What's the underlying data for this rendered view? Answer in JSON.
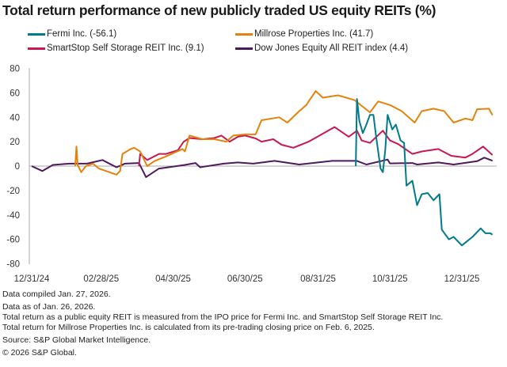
{
  "chart_data": {
    "type": "line",
    "title": "Total return performance of new publicly traded US equity REITs (%)",
    "xlabel": "",
    "ylabel": "",
    "ylim": [
      -80,
      80
    ],
    "yticks": [
      "80",
      "60",
      "40",
      "20",
      "0",
      "-20",
      "-40",
      "-60",
      "-80"
    ],
    "xticks": [
      "12/31/24",
      "02/28/25",
      "04/30/25",
      "06/30/25",
      "08/31/25",
      "10/31/25",
      "12/31/25"
    ],
    "xtick_dates": [
      "2024-12-31",
      "2025-02-28",
      "2025-04-30",
      "2025-06-30",
      "2025-08-31",
      "2025-10-31",
      "2025-12-31"
    ],
    "xlim": [
      "2024-12-31",
      "2026-01-26"
    ],
    "grid": false,
    "legend_placement": "top",
    "series": [
      {
        "name": "Fermi Inc. (-56.1)",
        "color": "#007a8c",
        "points": [
          [
            "2025-10-02",
            0
          ],
          [
            "2025-10-03",
            55
          ],
          [
            "2025-10-05",
            37
          ],
          [
            "2025-10-08",
            27
          ],
          [
            "2025-10-11",
            34
          ],
          [
            "2025-10-14",
            42
          ],
          [
            "2025-10-17",
            42
          ],
          [
            "2025-10-19",
            26
          ],
          [
            "2025-10-23",
            -2
          ],
          [
            "2025-10-25",
            -5
          ],
          [
            "2025-10-27",
            13
          ],
          [
            "2025-10-29",
            42
          ],
          [
            "2025-11-02",
            30
          ],
          [
            "2025-11-05",
            34
          ],
          [
            "2025-11-09",
            21
          ],
          [
            "2025-11-12",
            19
          ],
          [
            "2025-11-14",
            -16
          ],
          [
            "2025-11-19",
            -12
          ],
          [
            "2025-11-23",
            -32
          ],
          [
            "2025-11-27",
            -23
          ],
          [
            "2025-12-02",
            -22
          ],
          [
            "2025-12-07",
            -28
          ],
          [
            "2025-12-12",
            -23
          ],
          [
            "2025-12-14",
            -52
          ],
          [
            "2025-12-20",
            -60
          ],
          [
            "2025-12-24",
            -58
          ],
          [
            "2025-12-31",
            -65
          ],
          [
            "2026-01-09",
            -58
          ],
          [
            "2026-01-16",
            -51
          ],
          [
            "2026-01-20",
            -55
          ],
          [
            "2026-01-24",
            -55
          ],
          [
            "2026-01-26",
            -56.1
          ]
        ]
      },
      {
        "name": "Millrose Properties Inc. (41.7)",
        "color": "#e5820b",
        "points": [
          [
            "2025-02-06",
            0
          ],
          [
            "2025-02-07",
            16
          ],
          [
            "2025-02-08",
            1
          ],
          [
            "2025-02-11",
            -5
          ],
          [
            "2025-02-15",
            0
          ],
          [
            "2025-02-21",
            2
          ],
          [
            "2025-02-26",
            -2
          ],
          [
            "2025-03-10",
            -6
          ],
          [
            "2025-03-13",
            -7
          ],
          [
            "2025-03-16",
            -4
          ],
          [
            "2025-03-18",
            10
          ],
          [
            "2025-03-25",
            14
          ],
          [
            "2025-03-28",
            15
          ],
          [
            "2025-04-02",
            12
          ],
          [
            "2025-04-08",
            0
          ],
          [
            "2025-04-14",
            4
          ],
          [
            "2025-04-24",
            8
          ],
          [
            "2025-05-08",
            14
          ],
          [
            "2025-05-10",
            12
          ],
          [
            "2025-05-14",
            25
          ],
          [
            "2025-05-25",
            22
          ],
          [
            "2025-06-04",
            22
          ],
          [
            "2025-06-14",
            20
          ],
          [
            "2025-06-20",
            25
          ],
          [
            "2025-06-30",
            26
          ],
          [
            "2025-07-09",
            26
          ],
          [
            "2025-07-14",
            37.6
          ],
          [
            "2025-07-29",
            40
          ],
          [
            "2025-08-05",
            35.6
          ],
          [
            "2025-08-15",
            45
          ],
          [
            "2025-08-21",
            50
          ],
          [
            "2025-08-29",
            61.5
          ],
          [
            "2025-09-04",
            56
          ],
          [
            "2025-09-17",
            58
          ],
          [
            "2025-10-01",
            54
          ],
          [
            "2025-10-14",
            44
          ],
          [
            "2025-10-21",
            53
          ],
          [
            "2025-10-31",
            50
          ],
          [
            "2025-11-10",
            45
          ],
          [
            "2025-11-21",
            35.6
          ],
          [
            "2025-11-27",
            45
          ],
          [
            "2025-12-07",
            47
          ],
          [
            "2025-12-16",
            45
          ],
          [
            "2025-12-24",
            35.6
          ],
          [
            "2026-01-03",
            39
          ],
          [
            "2026-01-09",
            37.6
          ],
          [
            "2026-01-13",
            46.6
          ],
          [
            "2026-01-23",
            47
          ],
          [
            "2026-01-26",
            41.7
          ]
        ]
      },
      {
        "name": "SmartStop Self Storage REIT Inc. (9.1)",
        "color": "#c8194f",
        "points": [
          [
            "2025-04-01",
            0
          ],
          [
            "2025-04-02",
            10
          ],
          [
            "2025-04-08",
            5
          ],
          [
            "2025-04-18",
            10
          ],
          [
            "2025-04-24",
            10
          ],
          [
            "2025-05-04",
            13
          ],
          [
            "2025-05-09",
            20
          ],
          [
            "2025-05-14",
            23
          ],
          [
            "2025-05-25",
            22
          ],
          [
            "2025-06-04",
            23
          ],
          [
            "2025-06-10",
            25
          ],
          [
            "2025-06-17",
            20
          ],
          [
            "2025-06-24",
            24
          ],
          [
            "2025-06-30",
            25
          ],
          [
            "2025-07-09",
            22.7
          ],
          [
            "2025-07-14",
            20
          ],
          [
            "2025-07-24",
            22
          ],
          [
            "2025-07-31",
            17.5
          ],
          [
            "2025-08-10",
            15
          ],
          [
            "2025-08-23",
            20
          ],
          [
            "2025-09-14",
            32
          ],
          [
            "2025-09-26",
            24
          ],
          [
            "2025-10-03",
            29
          ],
          [
            "2025-10-07",
            21
          ],
          [
            "2025-10-14",
            19
          ],
          [
            "2025-10-25",
            29
          ],
          [
            "2025-10-31",
            21
          ],
          [
            "2025-11-07",
            18
          ],
          [
            "2025-11-19",
            10
          ],
          [
            "2025-11-27",
            12
          ],
          [
            "2025-12-11",
            14
          ],
          [
            "2025-12-22",
            8.4
          ],
          [
            "2026-01-03",
            7
          ],
          [
            "2026-01-09",
            10
          ],
          [
            "2026-01-18",
            16
          ],
          [
            "2026-01-26",
            9.1
          ]
        ]
      },
      {
        "name": "Dow Jones Equity All REIT index (4.4)",
        "color": "#4f1a5c",
        "points": [
          [
            "2024-12-31",
            0
          ],
          [
            "2025-01-09",
            -4
          ],
          [
            "2025-01-18",
            1
          ],
          [
            "2025-02-01",
            2
          ],
          [
            "2025-02-16",
            2
          ],
          [
            "2025-03-01",
            5
          ],
          [
            "2025-03-13",
            -1
          ],
          [
            "2025-03-20",
            2
          ],
          [
            "2025-04-01",
            2.5
          ],
          [
            "2025-04-07",
            -9
          ],
          [
            "2025-04-18",
            -2
          ],
          [
            "2025-04-26",
            -1
          ],
          [
            "2025-05-10",
            1
          ],
          [
            "2025-05-19",
            2.5
          ],
          [
            "2025-05-23",
            -1
          ],
          [
            "2025-06-12",
            2
          ],
          [
            "2025-06-24",
            3
          ],
          [
            "2025-07-07",
            2
          ],
          [
            "2025-07-25",
            4.3
          ],
          [
            "2025-08-15",
            1.3
          ],
          [
            "2025-09-12",
            4.3
          ],
          [
            "2025-10-03",
            4.3
          ],
          [
            "2025-10-11",
            1.3
          ],
          [
            "2025-10-29",
            5.4
          ],
          [
            "2025-10-31",
            2.2
          ],
          [
            "2025-11-19",
            2.5
          ],
          [
            "2025-11-23",
            1.3
          ],
          [
            "2025-12-11",
            3
          ],
          [
            "2025-12-24",
            1.3
          ],
          [
            "2026-01-13",
            4
          ],
          [
            "2026-01-19",
            6.9
          ],
          [
            "2026-01-26",
            4.4
          ]
        ]
      }
    ]
  },
  "footer": {
    "compiled": "Data compiled Jan. 27, 2026.",
    "as_of": "Data as of Jan. 26, 2026.",
    "note1": "Total return as a public equity REIT is measured from the IPO price for Fermi Inc. and SmartStop Self Storage REIT Inc.",
    "note2": "Total return for Millrose Properties Inc. is calculated from its pre-trading closing price on Feb. 6, 2025.",
    "source": "Source: S&P Global Market Intelligence.",
    "copyright": "© 2026 S&P Global."
  }
}
